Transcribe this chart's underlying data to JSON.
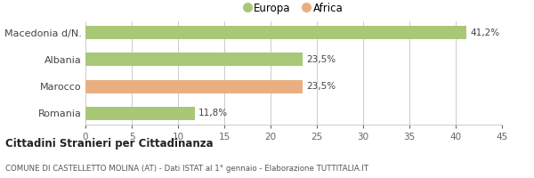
{
  "categories": [
    "Macedonia d/N.",
    "Albania",
    "Marocco",
    "Romania"
  ],
  "values": [
    41.2,
    23.5,
    23.5,
    11.8
  ],
  "labels": [
    "41,2%",
    "23,5%",
    "23,5%",
    "11,8%"
  ],
  "bar_colors": [
    "#a8c878",
    "#a8c878",
    "#e8b080",
    "#a8c878"
  ],
  "legend_labels": [
    "Europa",
    "Africa"
  ],
  "legend_colors": [
    "#a8c878",
    "#e8b080"
  ],
  "xlim": [
    0,
    45
  ],
  "xticks": [
    0,
    5,
    10,
    15,
    20,
    25,
    30,
    35,
    40,
    45
  ],
  "title_bold": "Cittadini Stranieri per Cittadinanza",
  "subtitle": "COMUNE DI CASTELLETTO MOLINA (AT) - Dati ISTAT al 1° gennaio - Elaborazione TUTTITALIA.IT",
  "grid_color": "#cccccc",
  "bg_color": "#ffffff",
  "bar_height": 0.5
}
